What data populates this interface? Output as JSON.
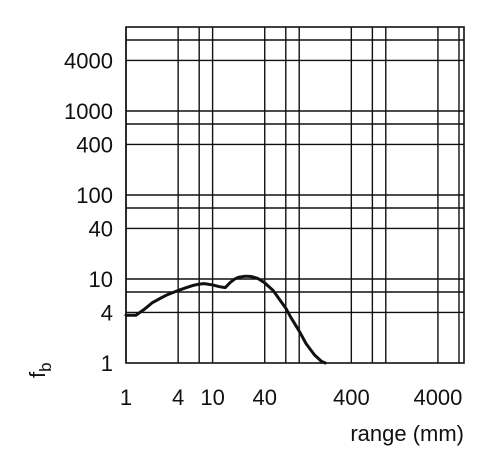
{
  "chart_data": {
    "type": "line",
    "xscale": "log",
    "yscale": "log",
    "xlim": [
      1,
      8000
    ],
    "ylim": [
      1,
      10000
    ],
    "xlabel": "range (mm)",
    "ylabel": "f_b",
    "ylabel_main": "f",
    "ylabel_sub": "b",
    "grid": true,
    "x_tick_labels": [
      "1",
      "4",
      "10",
      "40",
      "400",
      "4000"
    ],
    "y_tick_labels": [
      "4000",
      "1000",
      "400",
      "100",
      "40",
      "10",
      "4",
      "1"
    ],
    "x_gridlines": [
      1,
      4,
      7,
      10,
      40,
      70,
      100,
      400,
      700,
      1000,
      4000,
      7000
    ],
    "y_gridlines": [
      4,
      7,
      10,
      40,
      70,
      100,
      400,
      700,
      1000,
      4000,
      7000
    ],
    "series": [
      {
        "x": [
          1,
          1.3,
          1.6,
          2,
          2.5,
          3,
          4,
          5,
          6,
          7,
          8,
          10,
          12,
          14,
          16,
          18,
          20,
          24,
          28,
          33,
          40,
          50,
          60,
          70,
          80,
          100,
          120,
          150,
          180,
          200
        ],
        "y": [
          3.7,
          3.7,
          4.3,
          5.2,
          5.9,
          6.5,
          7.3,
          7.9,
          8.4,
          8.7,
          8.8,
          8.5,
          8.1,
          7.9,
          9.1,
          10,
          10.5,
          10.8,
          10.7,
          10.2,
          9,
          7.3,
          5.6,
          4.5,
          3.5,
          2.4,
          1.7,
          1.25,
          1.05,
          1
        ]
      }
    ]
  }
}
